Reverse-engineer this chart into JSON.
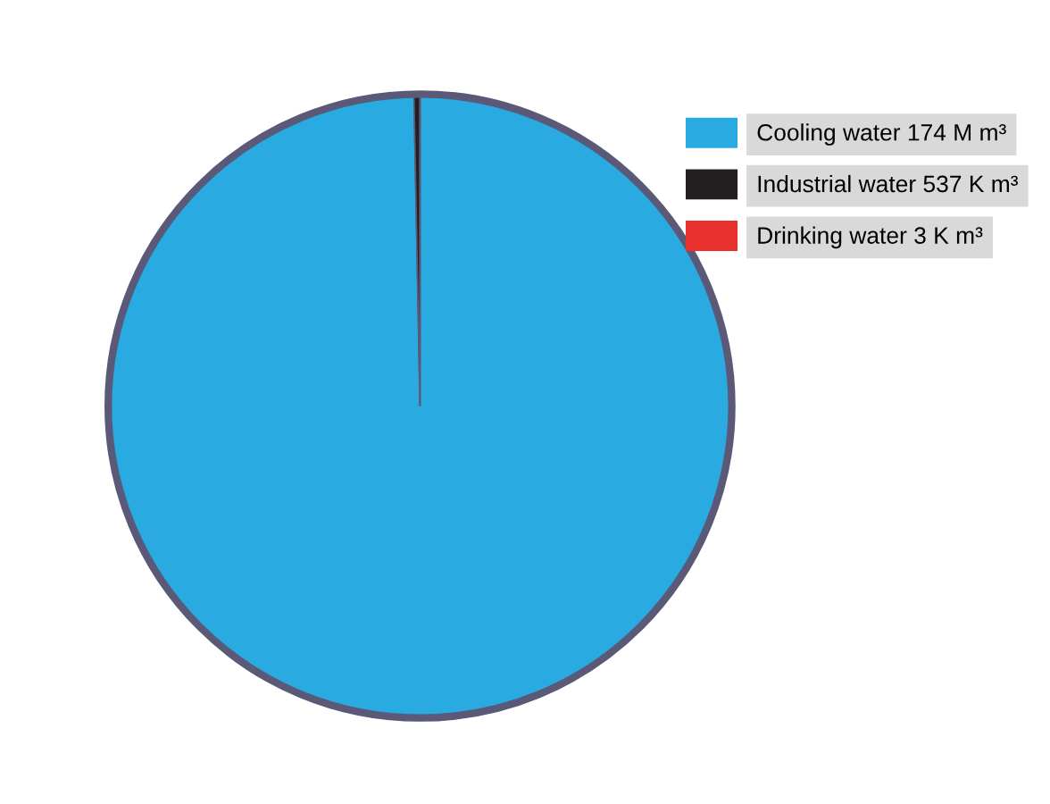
{
  "chart_data": {
    "type": "pie",
    "categories": [
      "Cooling water",
      "Industrial water",
      "Drinking water"
    ],
    "values": [
      174000000,
      537000,
      3000
    ],
    "value_labels": [
      "174 M m³",
      "537 K m³",
      "3 K m³"
    ],
    "colors": [
      "#29abe2",
      "#231f20",
      "#e8312f"
    ],
    "legend": "top right"
  }
}
